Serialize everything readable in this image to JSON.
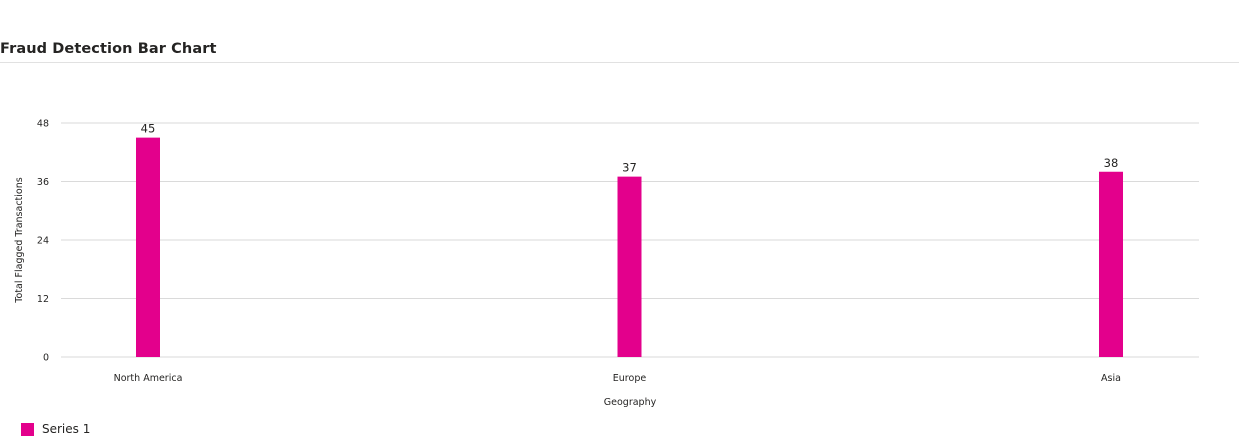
{
  "page": {
    "title": "Fraud Detection Bar Chart"
  },
  "colors": {
    "bar": "#e3008c",
    "grid": "#dadada",
    "axis_text": "#252423",
    "title_rule": "#e1e1e1"
  },
  "chart_data": {
    "type": "bar",
    "categories": [
      "North America",
      "Europe",
      "Asia"
    ],
    "series": [
      {
        "name": "Series 1",
        "values": [
          45,
          37,
          38
        ]
      }
    ],
    "xlabel": "Geography",
    "ylabel": "Total Flagged Transactions",
    "ylim": [
      0,
      48
    ],
    "yticks": [
      0,
      12,
      24,
      36,
      48
    ],
    "grid": true,
    "data_labels": true,
    "legend": "bottom-left"
  }
}
